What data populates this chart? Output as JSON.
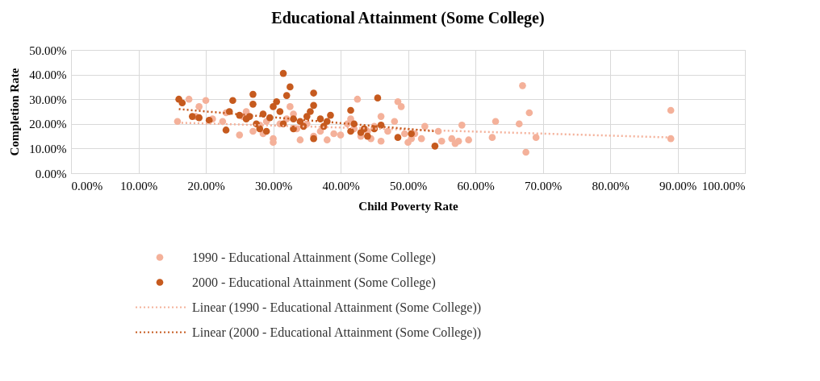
{
  "chart_data": {
    "type": "scatter",
    "title": "Educational Attainment (Some College)",
    "xlabel": "Child Poverty Rate",
    "ylabel": "Completion Rate",
    "xlim": [
      0,
      100
    ],
    "ylim": [
      0,
      50
    ],
    "xticks": [
      {
        "value": 0,
        "label": "0.00%"
      },
      {
        "value": 10,
        "label": "10.00%"
      },
      {
        "value": 20,
        "label": "20.00%"
      },
      {
        "value": 30,
        "label": "30.00%"
      },
      {
        "value": 40,
        "label": "40.00%"
      },
      {
        "value": 50,
        "label": "50.00%"
      },
      {
        "value": 60,
        "label": "60.00%"
      },
      {
        "value": 70,
        "label": "70.00%"
      },
      {
        "value": 80,
        "label": "80.00%"
      },
      {
        "value": 90,
        "label": "90.00%"
      },
      {
        "value": 100,
        "label": "100.00%"
      }
    ],
    "yticks": [
      {
        "value": 0,
        "label": "0.00%"
      },
      {
        "value": 10,
        "label": "10.00%"
      },
      {
        "value": 20,
        "label": "20.00%"
      },
      {
        "value": 30,
        "label": "30.00%"
      },
      {
        "value": 40,
        "label": "40.00%"
      },
      {
        "value": 50,
        "label": "50.00%"
      }
    ],
    "grid": true,
    "legend": "bottom",
    "series": [
      {
        "name": "1990 - Educational Attainment (Some College)",
        "marker": "circle",
        "color": "#f4b19a",
        "x": [
          15.8,
          17.5,
          19,
          20,
          18.5,
          21,
          22.5,
          23,
          25,
          25.5,
          26,
          27,
          28,
          28.5,
          29,
          30,
          30,
          31,
          32,
          32.5,
          33,
          33.5,
          34,
          35,
          36,
          37,
          37.5,
          38,
          39,
          40,
          41,
          41.5,
          42,
          42.5,
          43,
          44,
          44.5,
          45,
          46,
          46,
          47,
          48,
          48.5,
          49,
          49.5,
          50,
          50.5,
          51,
          52,
          52.5,
          54.5,
          55,
          56.5,
          57,
          57.5,
          58,
          59,
          62.5,
          63,
          66.5,
          67,
          67.5,
          68,
          69,
          89,
          89
        ],
        "values": [
          21,
          30,
          27,
          29.5,
          23,
          22,
          21,
          24.5,
          15.5,
          23,
          25,
          17,
          19.5,
          16,
          21,
          12.5,
          14,
          20,
          22,
          27,
          24,
          18,
          13.5,
          20,
          15,
          17,
          19,
          13.5,
          16,
          15.5,
          20,
          22,
          18,
          30,
          15,
          17,
          14,
          19,
          23,
          13,
          17,
          21,
          29,
          27,
          16,
          12.5,
          14,
          16,
          14,
          19,
          17,
          13,
          14,
          12,
          13,
          19.5,
          13.5,
          14.5,
          21,
          20,
          35.5,
          8.5,
          24.5,
          14.5,
          25.5,
          14
        ]
      },
      {
        "name": "2000 - Educational Attainment (Some College)",
        "marker": "circle",
        "color": "#c65a1e",
        "x": [
          16,
          16.5,
          18,
          19,
          20.5,
          23,
          23.5,
          24,
          25,
          26,
          26.5,
          27,
          27,
          27.5,
          28,
          28.5,
          29,
          29.5,
          30,
          30.5,
          31,
          31.5,
          31.5,
          32,
          32.5,
          33,
          33,
          34,
          34.5,
          35,
          35.5,
          36,
          36,
          36,
          37,
          37.5,
          38,
          38.5,
          41.5,
          41.5,
          42,
          43,
          43.5,
          44,
          45,
          45.5,
          46,
          48.5,
          50.5,
          54
        ],
        "values": [
          30,
          28.5,
          23,
          22.5,
          21.5,
          17.5,
          25,
          29.5,
          23.5,
          22,
          23,
          28,
          32,
          20,
          18,
          24,
          17,
          22.5,
          27,
          29,
          25,
          40.5,
          20,
          31.5,
          35,
          18,
          22,
          21,
          19,
          23,
          25,
          32.5,
          27.5,
          14,
          22,
          19,
          21,
          23.5,
          25.5,
          17,
          20,
          16.5,
          18,
          15,
          18,
          30.5,
          19.5,
          14.5,
          16,
          11
        ]
      },
      {
        "name": "Linear (1990 - Educational Attainment (Some College))",
        "type": "line",
        "marker": "none",
        "line_style": "dotted",
        "color": "#f4b19a",
        "x": [
          15.8,
          89
        ],
        "values": [
          20.5,
          14.5
        ]
      },
      {
        "name": "Linear (2000 - Educational Attainment (Some College))",
        "type": "line",
        "marker": "none",
        "line_style": "dotted",
        "color": "#c65a1e",
        "x": [
          16,
          54
        ],
        "values": [
          26,
          17
        ]
      }
    ]
  }
}
